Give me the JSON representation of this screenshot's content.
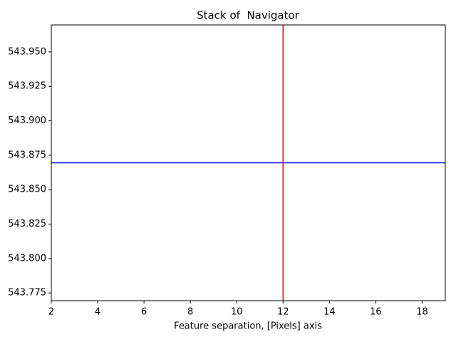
{
  "chart_data": {
    "type": "line",
    "title": "Stack of  Navigator",
    "x_label": "Feature separation, [Pixels] axis",
    "xlim": [
      2,
      19
    ],
    "xticks": [
      2,
      4,
      6,
      8,
      10,
      12,
      14,
      16,
      18
    ],
    "ylim": [
      543.7694,
      543.9696
    ],
    "yticks": [
      543.775,
      {
        "value": 543.8,
        "label": "543.800"
      },
      543.825,
      {
        "value": 543.85,
        "label": "543.850"
      },
      543.875,
      {
        "value": 543.9,
        "label": "543.900"
      },
      543.925,
      {
        "value": 543.95,
        "label": "543.950"
      }
    ],
    "hlines": [
      {
        "y": 543.8695,
        "color": "#0000ff"
      }
    ],
    "vlines": [
      {
        "x": 12,
        "color": "#ff0000"
      }
    ],
    "grid": false
  }
}
